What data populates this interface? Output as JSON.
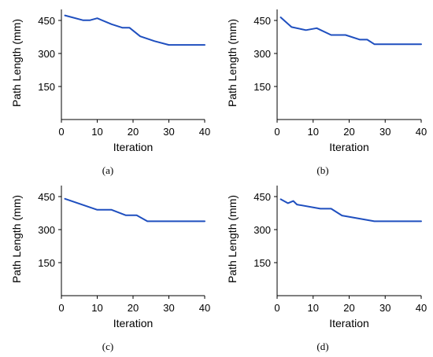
{
  "chart_data": [
    {
      "panel": "(a)",
      "type": "line",
      "xlabel": "Iteration",
      "ylabel": "Path Length (mm)",
      "xlim": [
        0,
        40
      ],
      "ylim": [
        0,
        500
      ],
      "xticks": [
        "0",
        "10",
        "20",
        "30",
        "40"
      ],
      "yticks": [
        "150",
        "300",
        "450"
      ],
      "grid": false,
      "series": [
        {
          "color": "#1f4fbf",
          "x": [
            1,
            6,
            8,
            10,
            14,
            17,
            19,
            22,
            26,
            30,
            40
          ],
          "y": [
            473,
            451,
            451,
            460,
            433,
            417,
            417,
            378,
            356,
            339,
            339
          ]
        }
      ]
    },
    {
      "panel": "(b)",
      "type": "line",
      "xlabel": "Iteration",
      "ylabel": "Path Length (mm)",
      "xlim": [
        0,
        40
      ],
      "ylim": [
        0,
        500
      ],
      "xticks": [
        "0",
        "10",
        "20",
        "30",
        "40"
      ],
      "yticks": [
        "150",
        "300",
        "450"
      ],
      "grid": false,
      "series": [
        {
          "color": "#1f4fbf",
          "x": [
            1,
            4,
            8,
            11,
            15,
            19,
            23,
            25,
            27,
            40
          ],
          "y": [
            464,
            420,
            406,
            415,
            384,
            384,
            363,
            363,
            342,
            342
          ]
        }
      ]
    },
    {
      "panel": "(c)",
      "type": "line",
      "xlabel": "Iteration",
      "ylabel": "Path Length (mm)",
      "xlim": [
        0,
        40
      ],
      "ylim": [
        0,
        500
      ],
      "xticks": [
        "0",
        "10",
        "20",
        "30",
        "40"
      ],
      "yticks": [
        "150",
        "300",
        "450"
      ],
      "grid": false,
      "series": [
        {
          "color": "#1f4fbf",
          "x": [
            1,
            10,
            14,
            18,
            21,
            24,
            40
          ],
          "y": [
            440,
            390,
            390,
            365,
            365,
            338,
            338
          ]
        }
      ]
    },
    {
      "panel": "(d)",
      "type": "line",
      "xlabel": "Iteration",
      "ylabel": "Path Length (mm)",
      "xlim": [
        0,
        40
      ],
      "ylim": [
        0,
        500
      ],
      "xticks": [
        "0",
        "10",
        "20",
        "30",
        "40"
      ],
      "yticks": [
        "150",
        "300",
        "450"
      ],
      "grid": false,
      "series": [
        {
          "color": "#1f4fbf",
          "x": [
            1,
            3,
            4.5,
            5.5,
            12,
            15,
            18,
            27,
            40
          ],
          "y": [
            438,
            420,
            430,
            414,
            395,
            395,
            364,
            338,
            338
          ]
        }
      ]
    }
  ]
}
